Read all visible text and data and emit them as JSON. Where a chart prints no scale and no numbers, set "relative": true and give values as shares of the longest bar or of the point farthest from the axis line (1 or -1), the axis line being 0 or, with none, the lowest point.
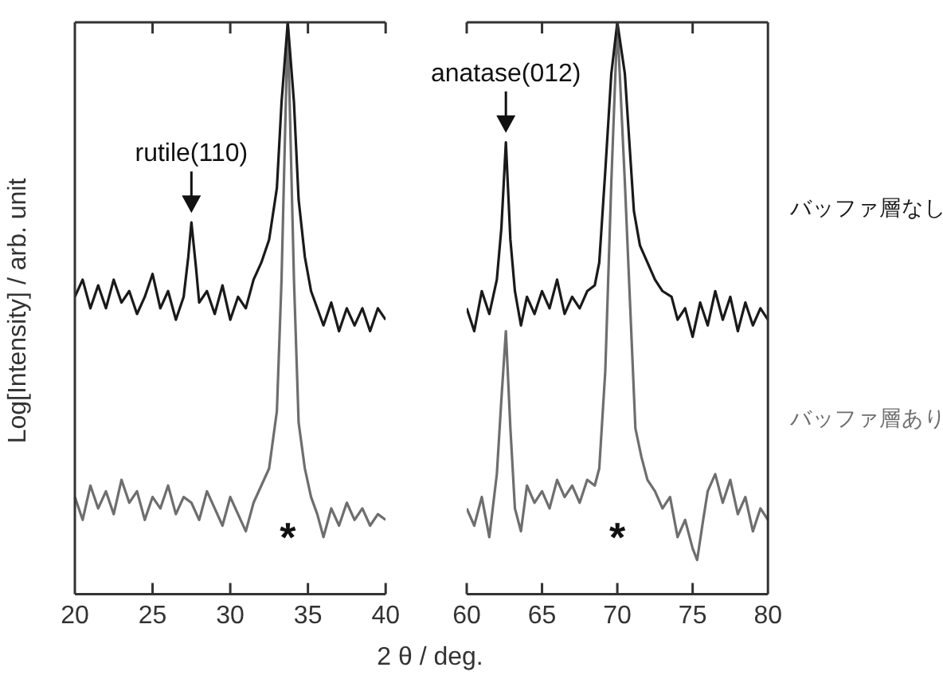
{
  "chart_data": [
    {
      "type": "line",
      "relative": true,
      "ylabel": "Log[Intensity] / arb. unit",
      "xlabel": "2 θ / deg.",
      "xlim": [
        20,
        40
      ],
      "xticks": [
        20,
        25,
        30,
        35,
        40
      ],
      "grid": false,
      "legend": false,
      "marker": "none",
      "line_style": "solid",
      "annotations": [
        {
          "text": "rutile(110)",
          "x": 27.5,
          "y": 0.65
        },
        "*"
      ],
      "series": [
        {
          "color": "#1a1a1a",
          "x": [
            20,
            20.5,
            21,
            21.5,
            22,
            22.5,
            23,
            23.5,
            24,
            24.5,
            25,
            25.5,
            26,
            26.5,
            27,
            27.3,
            27.5,
            27.8,
            28,
            28.5,
            29,
            29.5,
            30,
            30.5,
            31,
            31.5,
            32,
            32.5,
            33,
            33.3,
            33.7,
            34.1,
            34.4,
            34.8,
            35.2,
            35.6,
            36,
            36.5,
            37,
            37.5,
            38,
            38.5,
            39,
            39.5,
            40
          ],
          "values": [
            0.52,
            0.55,
            0.5,
            0.54,
            0.5,
            0.55,
            0.51,
            0.53,
            0.49,
            0.52,
            0.56,
            0.5,
            0.53,
            0.48,
            0.52,
            0.59,
            0.65,
            0.57,
            0.51,
            0.53,
            0.49,
            0.54,
            0.48,
            0.52,
            0.5,
            0.55,
            0.58,
            0.62,
            0.71,
            0.86,
            1,
            0.86,
            0.69,
            0.59,
            0.53,
            0.5,
            0.47,
            0.51,
            0.46,
            0.5,
            0.47,
            0.5,
            0.46,
            0.5,
            0.48
          ]
        },
        {
          "color": "#6e6e6e",
          "x": [
            20,
            20.5,
            21,
            21.5,
            22,
            22.5,
            23,
            23.5,
            24,
            24.5,
            25,
            25.5,
            26,
            26.5,
            27,
            27.5,
            28,
            28.5,
            29,
            29.5,
            30,
            30.5,
            31,
            31.5,
            32,
            32.5,
            33,
            33.3,
            33.7,
            34.1,
            34.4,
            34.8,
            35.2,
            35.6,
            36,
            36.5,
            37,
            37.5,
            38,
            38.5,
            39,
            39.5,
            40
          ],
          "values": [
            0.17,
            0.13,
            0.19,
            0.15,
            0.18,
            0.14,
            0.2,
            0.16,
            0.18,
            0.13,
            0.17,
            0.15,
            0.19,
            0.14,
            0.17,
            0.16,
            0.13,
            0.18,
            0.15,
            0.12,
            0.17,
            0.14,
            0.11,
            0.16,
            0.19,
            0.22,
            0.32,
            0.55,
            1,
            0.55,
            0.3,
            0.22,
            0.17,
            0.14,
            0.1,
            0.15,
            0.12,
            0.16,
            0.13,
            0.15,
            0.12,
            0.14,
            0.13
          ]
        }
      ]
    },
    {
      "type": "line",
      "relative": true,
      "xlim": [
        60,
        80
      ],
      "xticks": [
        60,
        65,
        70,
        75,
        80
      ],
      "grid": false,
      "legend": false,
      "marker": "none",
      "line_style": "solid",
      "annotations": [
        {
          "text": "anatase(012)",
          "x": 62.6,
          "y": 0.79
        },
        "*"
      ],
      "series": [
        {
          "name": "バッファ層なし",
          "color": "#1a1a1a",
          "x": [
            60,
            60.5,
            61,
            61.5,
            62,
            62.3,
            62.6,
            62.9,
            63.2,
            63.6,
            64,
            64.5,
            65,
            65.5,
            66,
            66.5,
            67,
            67.5,
            68,
            68.5,
            68.8,
            69.2,
            69.6,
            70,
            70.5,
            71.1,
            71.5,
            72,
            72.5,
            73,
            73.6,
            74,
            74.5,
            75,
            75.5,
            76,
            76.5,
            77,
            77.5,
            78,
            78.5,
            79,
            79.5,
            80
          ],
          "values": [
            0.5,
            0.46,
            0.53,
            0.49,
            0.55,
            0.64,
            0.79,
            0.62,
            0.53,
            0.47,
            0.52,
            0.49,
            0.53,
            0.5,
            0.55,
            0.49,
            0.52,
            0.5,
            0.53,
            0.54,
            0.58,
            0.74,
            0.91,
            1,
            0.91,
            0.67,
            0.61,
            0.58,
            0.55,
            0.53,
            0.52,
            0.48,
            0.5,
            0.45,
            0.51,
            0.47,
            0.53,
            0.48,
            0.52,
            0.46,
            0.51,
            0.47,
            0.5,
            0.48
          ]
        },
        {
          "name": "バッファ層あり",
          "color": "#6e6e6e",
          "x": [
            60,
            60.5,
            61,
            61.5,
            62,
            62.3,
            62.6,
            62.9,
            63.2,
            63.6,
            64,
            64.5,
            65,
            65.5,
            66,
            66.5,
            67,
            67.5,
            68,
            68.5,
            68.8,
            69.2,
            69.6,
            70,
            70.5,
            71.2,
            71.6,
            72,
            72.5,
            73,
            73.5,
            74,
            74.5,
            75,
            75.3,
            75.7,
            76,
            76.5,
            77,
            77.5,
            78,
            78.5,
            79,
            79.5,
            80
          ],
          "values": [
            0.15,
            0.12,
            0.17,
            0.1,
            0.21,
            0.34,
            0.46,
            0.29,
            0.15,
            0.11,
            0.19,
            0.16,
            0.18,
            0.15,
            0.2,
            0.17,
            0.19,
            0.16,
            0.2,
            0.19,
            0.22,
            0.39,
            0.72,
            1,
            0.72,
            0.29,
            0.24,
            0.2,
            0.18,
            0.15,
            0.17,
            0.1,
            0.13,
            0.08,
            0.06,
            0.13,
            0.18,
            0.21,
            0.16,
            0.2,
            0.14,
            0.17,
            0.11,
            0.15,
            0.13
          ]
        }
      ]
    }
  ]
}
